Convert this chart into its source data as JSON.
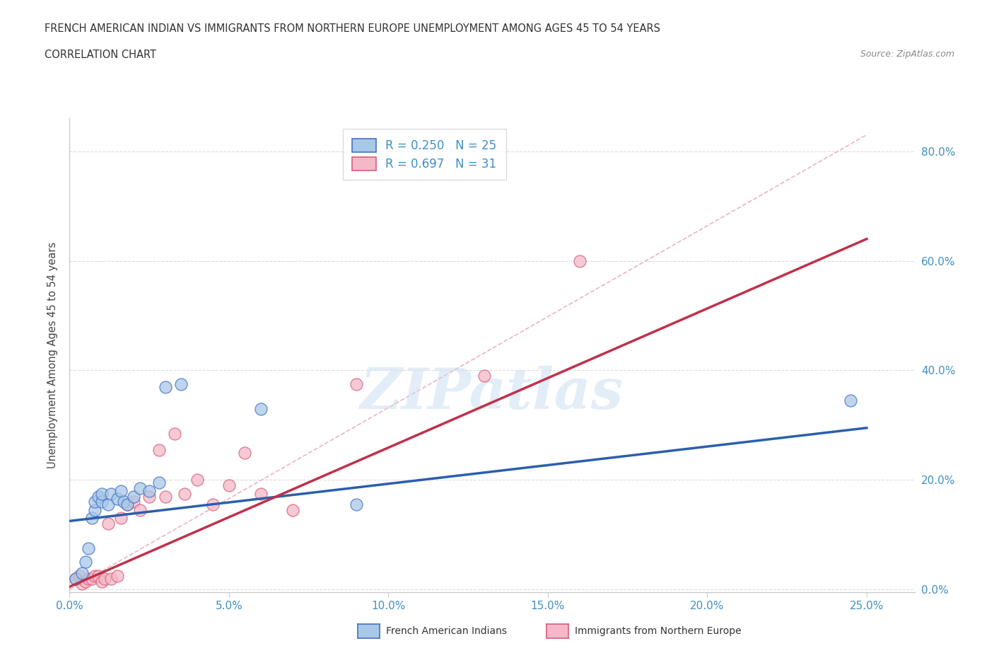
{
  "title_line1": "FRENCH AMERICAN INDIAN VS IMMIGRANTS FROM NORTHERN EUROPE UNEMPLOYMENT AMONG AGES 45 TO 54 YEARS",
  "title_line2": "CORRELATION CHART",
  "source": "Source: ZipAtlas.com",
  "xlabel_ticks": [
    "0.0%",
    "5.0%",
    "10.0%",
    "15.0%",
    "20.0%",
    "25.0%"
  ],
  "ylabel_ticks": [
    "0.0%",
    "20.0%",
    "40.0%",
    "60.0%",
    "80.0%"
  ],
  "ylabel_label": "Unemployment Among Ages 45 to 54 years",
  "xlim": [
    0.0,
    0.265
  ],
  "ylim": [
    -0.005,
    0.86
  ],
  "legend_r1": "R = 0.250",
  "legend_n1": "N = 25",
  "legend_r2": "R = 0.697",
  "legend_n2": "N = 31",
  "legend_label1": "French American Indians",
  "legend_label2": "Immigrants from Northern Europe",
  "blue_fill_color": "#a8c8e8",
  "blue_edge_color": "#4472c4",
  "blue_line_color": "#2b5fad",
  "pink_fill_color": "#f4b8c8",
  "pink_edge_color": "#d4607a",
  "pink_line_color": "#c0304a",
  "ref_line_color": "#e8a0b0",
  "watermark": "ZIPatlas",
  "watermark_color": "#c8ddf0",
  "blue_scatter_x": [
    0.002,
    0.004,
    0.005,
    0.006,
    0.007,
    0.008,
    0.008,
    0.009,
    0.01,
    0.01,
    0.012,
    0.013,
    0.015,
    0.016,
    0.017,
    0.018,
    0.02,
    0.022,
    0.025,
    0.028,
    0.03,
    0.035,
    0.06,
    0.09,
    0.245
  ],
  "blue_scatter_y": [
    0.02,
    0.03,
    0.05,
    0.075,
    0.13,
    0.145,
    0.16,
    0.17,
    0.16,
    0.175,
    0.155,
    0.175,
    0.165,
    0.18,
    0.16,
    0.155,
    0.17,
    0.185,
    0.18,
    0.195,
    0.37,
    0.375,
    0.33,
    0.155,
    0.345
  ],
  "pink_scatter_x": [
    0.002,
    0.003,
    0.004,
    0.005,
    0.006,
    0.007,
    0.008,
    0.009,
    0.01,
    0.011,
    0.012,
    0.013,
    0.015,
    0.016,
    0.018,
    0.02,
    0.022,
    0.025,
    0.028,
    0.03,
    0.033,
    0.036,
    0.04,
    0.045,
    0.05,
    0.055,
    0.06,
    0.07,
    0.09,
    0.13,
    0.16
  ],
  "pink_scatter_y": [
    0.02,
    0.025,
    0.01,
    0.015,
    0.02,
    0.02,
    0.025,
    0.025,
    0.015,
    0.02,
    0.12,
    0.02,
    0.025,
    0.13,
    0.155,
    0.16,
    0.145,
    0.17,
    0.255,
    0.17,
    0.285,
    0.175,
    0.2,
    0.155,
    0.19,
    0.25,
    0.175,
    0.145,
    0.375,
    0.39,
    0.6
  ],
  "blue_line_x": [
    0.0,
    0.25
  ],
  "blue_line_y": [
    0.125,
    0.295
  ],
  "pink_line_x": [
    0.0,
    0.25
  ],
  "pink_line_y": [
    0.005,
    0.64
  ],
  "ref_line_x": [
    0.0,
    0.25
  ],
  "ref_line_y": [
    0.0,
    0.83
  ],
  "background_color": "#ffffff",
  "grid_color": "#dddddd",
  "spine_color": "#cccccc",
  "tick_color": "#4090c0",
  "title_color": "#333333",
  "ylabel_color": "#444444"
}
